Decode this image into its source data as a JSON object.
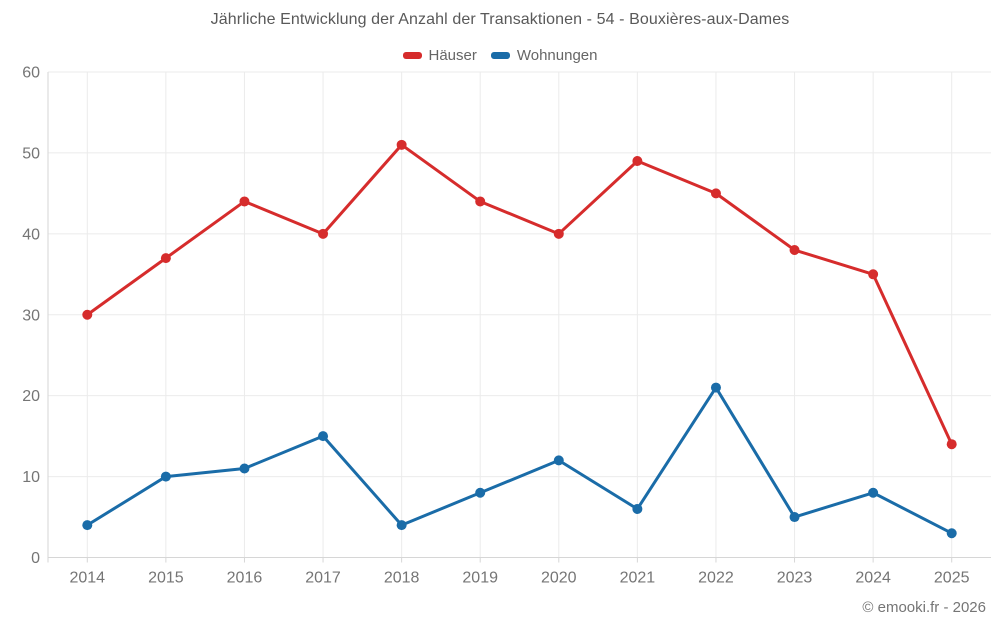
{
  "chart_data": {
    "type": "line",
    "title": "Jährliche Entwicklung der Anzahl der Transaktionen - 54 - Bouxières-aux-Dames",
    "categories": [
      "2014",
      "2015",
      "2016",
      "2017",
      "2018",
      "2019",
      "2020",
      "2021",
      "2022",
      "2023",
      "2024",
      "2025"
    ],
    "series": [
      {
        "name": "Häuser",
        "color": "#d62c2c",
        "values": [
          30,
          37,
          44,
          40,
          51,
          44,
          40,
          49,
          45,
          38,
          35,
          14
        ]
      },
      {
        "name": "Wohnungen",
        "color": "#1a6ca8",
        "values": [
          4,
          10,
          11,
          15,
          4,
          8,
          12,
          6,
          21,
          5,
          8,
          3
        ]
      }
    ],
    "ylim": [
      0,
      60
    ],
    "yticks": [
      0,
      10,
      20,
      30,
      40,
      50,
      60
    ],
    "grid": true,
    "legend_position": "top",
    "colors": {
      "gridline": "#ebebeb",
      "axis_line": "#d6d6d6",
      "tick_label": "#757575"
    }
  },
  "footer": {
    "text": "© emooki.fr - 2026"
  }
}
